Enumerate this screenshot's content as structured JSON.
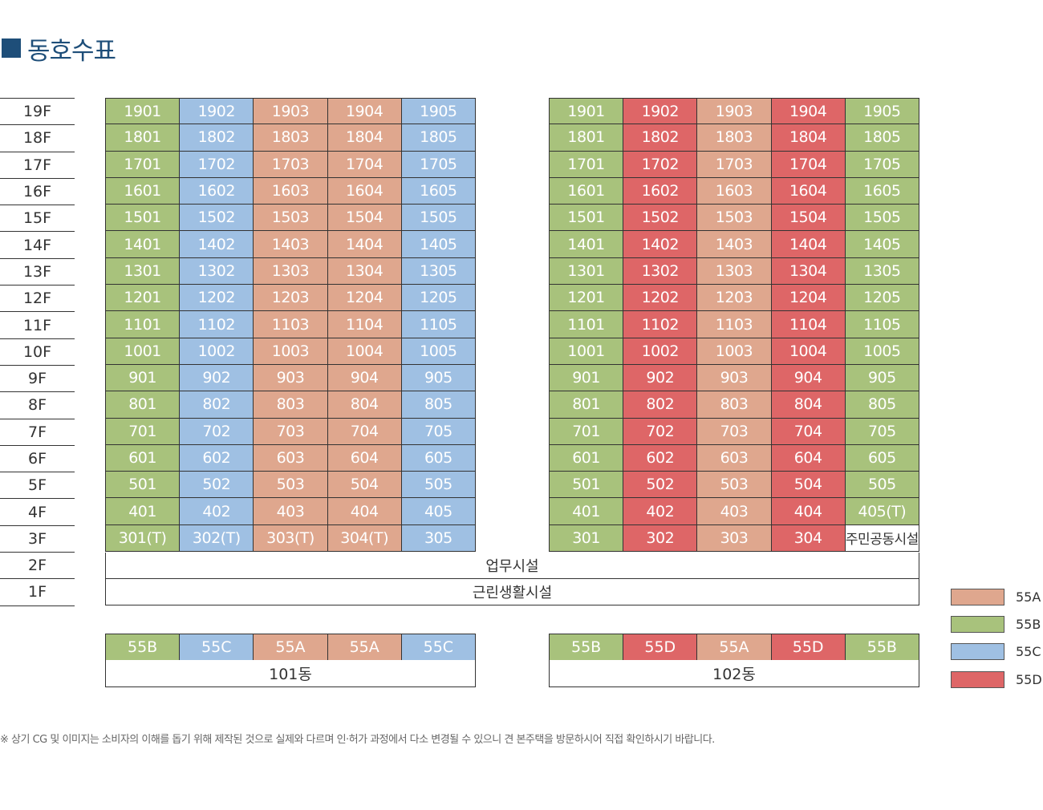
{
  "title": "동호수표",
  "colors": {
    "55A": "#dfa78e",
    "55B": "#a8c27c",
    "55C": "#9fc0e3",
    "55D": "#de6667",
    "accent": "#1e4e79"
  },
  "floors": [
    "19F",
    "18F",
    "17F",
    "16F",
    "15F",
    "14F",
    "13F",
    "12F",
    "11F",
    "10F",
    "9F",
    "8F",
    "7F",
    "6F",
    "5F",
    "4F",
    "3F",
    "2F",
    "1F"
  ],
  "buildings": [
    {
      "name": "101동",
      "types": [
        "55B",
        "55C",
        "55A",
        "55A",
        "55C"
      ],
      "units": [
        [
          "1901",
          "1902",
          "1903",
          "1904",
          "1905"
        ],
        [
          "1801",
          "1802",
          "1803",
          "1804",
          "1805"
        ],
        [
          "1701",
          "1702",
          "1703",
          "1704",
          "1705"
        ],
        [
          "1601",
          "1602",
          "1603",
          "1604",
          "1605"
        ],
        [
          "1501",
          "1502",
          "1503",
          "1504",
          "1505"
        ],
        [
          "1401",
          "1402",
          "1403",
          "1404",
          "1405"
        ],
        [
          "1301",
          "1302",
          "1303",
          "1304",
          "1305"
        ],
        [
          "1201",
          "1202",
          "1203",
          "1204",
          "1205"
        ],
        [
          "1101",
          "1102",
          "1103",
          "1104",
          "1105"
        ],
        [
          "1001",
          "1002",
          "1003",
          "1004",
          "1005"
        ],
        [
          "901",
          "902",
          "903",
          "904",
          "905"
        ],
        [
          "801",
          "802",
          "803",
          "804",
          "805"
        ],
        [
          "701",
          "702",
          "703",
          "704",
          "705"
        ],
        [
          "601",
          "602",
          "603",
          "604",
          "605"
        ],
        [
          "501",
          "502",
          "503",
          "504",
          "505"
        ],
        [
          "401",
          "402",
          "403",
          "404",
          "405"
        ],
        [
          "301(T)",
          "302(T)",
          "303(T)",
          "304(T)",
          "305"
        ]
      ]
    },
    {
      "name": "102동",
      "types": [
        "55B",
        "55D",
        "55A",
        "55D",
        "55B"
      ],
      "units": [
        [
          "1901",
          "1902",
          "1903",
          "1904",
          "1905"
        ],
        [
          "1801",
          "1802",
          "1803",
          "1804",
          "1805"
        ],
        [
          "1701",
          "1702",
          "1703",
          "1704",
          "1705"
        ],
        [
          "1601",
          "1602",
          "1603",
          "1604",
          "1605"
        ],
        [
          "1501",
          "1502",
          "1503",
          "1504",
          "1505"
        ],
        [
          "1401",
          "1402",
          "1403",
          "1404",
          "1405"
        ],
        [
          "1301",
          "1302",
          "1303",
          "1304",
          "1305"
        ],
        [
          "1201",
          "1202",
          "1203",
          "1204",
          "1205"
        ],
        [
          "1101",
          "1102",
          "1103",
          "1104",
          "1105"
        ],
        [
          "1001",
          "1002",
          "1003",
          "1004",
          "1005"
        ],
        [
          "901",
          "902",
          "903",
          "904",
          "905"
        ],
        [
          "801",
          "802",
          "803",
          "804",
          "805"
        ],
        [
          "701",
          "702",
          "703",
          "704",
          "705"
        ],
        [
          "601",
          "602",
          "603",
          "604",
          "605"
        ],
        [
          "501",
          "502",
          "503",
          "504",
          "505"
        ],
        [
          "401",
          "402",
          "403",
          "404",
          "405(T)"
        ],
        [
          "301",
          "302",
          "303",
          "304",
          "주민공동시설"
        ]
      ]
    }
  ],
  "floor_2f_label": "업무시설",
  "floor_1f_label": "근린생활시설",
  "legend": [
    "55A",
    "55B",
    "55C",
    "55D"
  ],
  "footnote": "※ 상기 CG 및 이미지는 소비자의 이해를 돕기 위해 제작된 것으로 실제와 다르며 인·허가 과정에서 다소 변경될 수 있으니 견 본주택을 방문하시어 직접 확인하시기 바랍니다."
}
